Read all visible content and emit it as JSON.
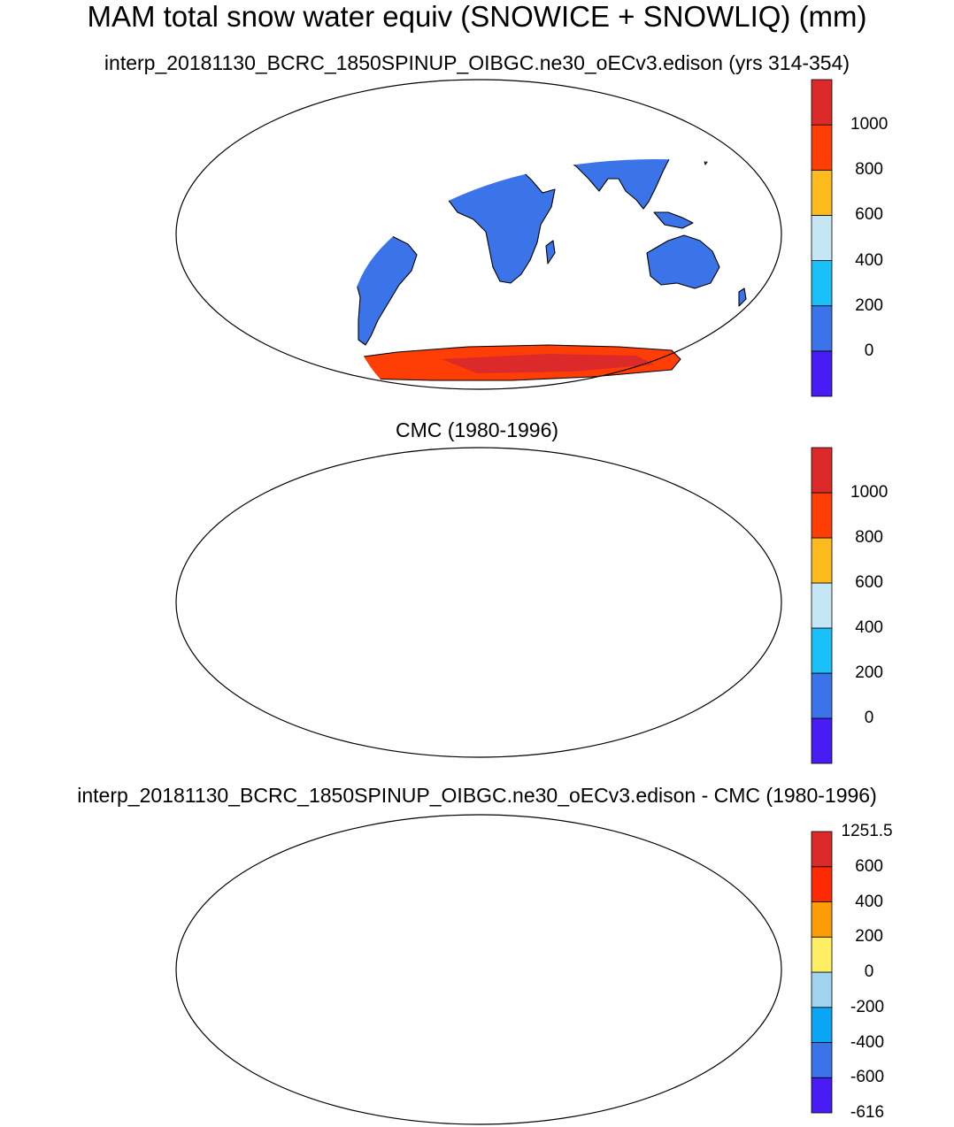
{
  "figure": {
    "title": "MAM total snow water equiv (SNOWICE + SNOWLIQ) (mm)"
  },
  "panels": [
    {
      "id": "model",
      "title": "interp_20181130_BCRC_1850SPINUP_OIBGC.ne30_oECv3.edison (yrs 314-354)",
      "colorbar": {
        "colors": [
          "#4a1cf5",
          "#3a74e8",
          "#19c0f7",
          "#c4e6f5",
          "#fdba1c",
          "#fe3e04",
          "#dc2a2a"
        ],
        "labels": [
          "0",
          "200",
          "400",
          "600",
          "800",
          "1000"
        ]
      },
      "fill": {
        "land": "#3a74e8",
        "greenland": "#fe3e04",
        "antarctica": "#fe3e04",
        "antarctica_high": "#dc2a2a",
        "arctic_islands": "#19c0f7"
      }
    },
    {
      "id": "obs",
      "title": "CMC (1980-1996)",
      "colorbar": {
        "colors": [
          "#4a1cf5",
          "#3a74e8",
          "#19c0f7",
          "#c4e6f5",
          "#fdba1c",
          "#fe3e04",
          "#dc2a2a"
        ],
        "labels": [
          "0",
          "200",
          "400",
          "600",
          "800",
          "1000"
        ]
      },
      "fill": {
        "north_america": "#3a74e8",
        "patch_light": "#19c0f7",
        "patch_hot": "#fe3e04"
      }
    },
    {
      "id": "diff",
      "title": "interp_20181130_BCRC_1850SPINUP_OIBGC.ne30_oECv3.edison - CMC (1980-1996)",
      "colorbar": {
        "colors": [
          "#4a1cf5",
          "#3a74e8",
          "#0aa6f5",
          "#9fd3ee",
          "#fdee63",
          "#fd9c04",
          "#fe2a04",
          "#dc2a2a"
        ],
        "labels": [
          "-616",
          "-600",
          "-400",
          "-200",
          "0",
          "200",
          "400",
          "600",
          "1251.5"
        ]
      },
      "fill": {
        "north_america": "#fdee63",
        "negative_patch": "#9fd3ee",
        "greenland": "#dc2a2a"
      }
    }
  ]
}
